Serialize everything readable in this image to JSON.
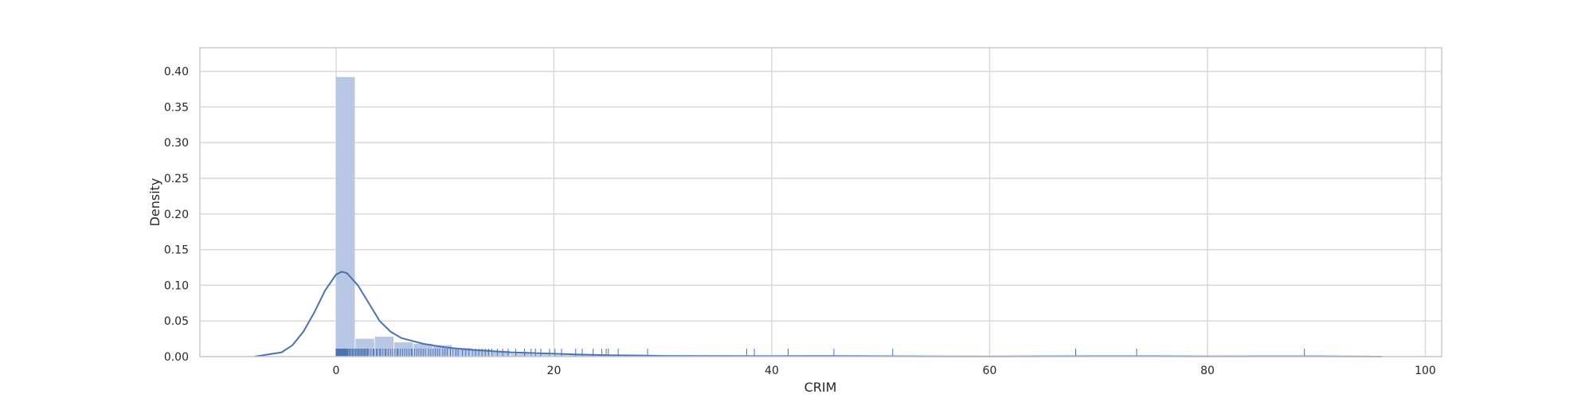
{
  "chart_data": {
    "type": "histogram",
    "xlabel": "CRIM",
    "ylabel": "Density",
    "xlim": [
      -12.5,
      101.5
    ],
    "ylim": [
      0,
      0.433
    ],
    "x_ticks": [
      0,
      20,
      40,
      60,
      80,
      100
    ],
    "y_ticks": [
      0.0,
      0.05,
      0.1,
      0.15,
      0.2,
      0.25,
      0.3,
      0.35,
      0.4
    ],
    "y_tick_labels": [
      "0.00",
      "0.05",
      "0.10",
      "0.15",
      "0.20",
      "0.25",
      "0.30",
      "0.35",
      "0.40"
    ],
    "grid": true,
    "colors": {
      "bar": "#b8c7e3",
      "line": "#4c72b0",
      "rug": "#4c72b0",
      "grid": "#d9d9d9",
      "frame": "#cccccc"
    },
    "histogram": {
      "bin_edges": [
        0.0,
        1.78,
        3.56,
        5.34,
        7.12,
        8.9,
        10.68,
        12.46,
        14.24,
        16.02,
        17.8,
        19.58,
        21.36,
        23.14,
        24.92,
        26.7,
        28.48,
        30.26,
        32.04,
        33.82,
        35.6,
        37.38,
        39.16,
        40.94,
        42.72,
        44.5,
        46.28,
        48.06,
        49.84,
        51.62,
        53.4,
        55.18,
        56.96,
        58.74,
        60.52,
        62.3,
        64.08,
        65.86,
        67.64,
        69.42,
        71.2,
        72.98,
        74.76,
        76.54,
        78.32,
        80.1,
        81.88,
        83.66,
        85.44,
        87.22,
        89.0
      ],
      "densities": [
        0.392,
        0.025,
        0.028,
        0.02,
        0.018,
        0.016,
        0.012,
        0.01,
        0.008,
        0.004,
        0.003,
        0.002,
        0.003,
        0.002,
        0.002,
        0.0,
        0.001,
        0.0,
        0.0,
        0.0,
        0.0,
        0.001,
        0.001,
        0.0,
        0.001,
        0.0,
        0.001,
        0.0,
        0.0,
        0.001,
        0.0,
        0.0,
        0.0,
        0.0,
        0.0,
        0.0,
        0.0,
        0.0,
        0.001,
        0.0,
        0.0,
        0.001,
        0.0,
        0.0,
        0.0,
        0.0,
        0.0,
        0.0,
        0.0,
        0.001
      ]
    },
    "kde": {
      "x": [
        -7.5,
        -5,
        -4,
        -3,
        -2,
        -1,
        0,
        0.5,
        1,
        2,
        3,
        4,
        5,
        6,
        8,
        10,
        12,
        14,
        16,
        18,
        20,
        22,
        25,
        28,
        30,
        35,
        40,
        45,
        50,
        55,
        60,
        65,
        70,
        75,
        80,
        85,
        90,
        96
      ],
      "y": [
        0.0,
        0.006,
        0.016,
        0.035,
        0.062,
        0.093,
        0.115,
        0.119,
        0.117,
        0.1,
        0.075,
        0.05,
        0.035,
        0.026,
        0.018,
        0.013,
        0.01,
        0.008,
        0.006,
        0.005,
        0.004,
        0.003,
        0.002,
        0.0015,
        0.001,
        0.0008,
        0.0007,
        0.0008,
        0.0005,
        0.0003,
        0.0002,
        0.0004,
        0.0006,
        0.0005,
        0.0003,
        0.0004,
        0.0004,
        0.0
      ]
    },
    "rug": [
      0.006,
      0.03,
      0.06,
      0.08,
      0.1,
      0.12,
      0.15,
      0.18,
      0.2,
      0.23,
      0.26,
      0.3,
      0.35,
      0.4,
      0.45,
      0.5,
      0.55,
      0.6,
      0.65,
      0.7,
      0.75,
      0.8,
      0.85,
      0.9,
      0.95,
      1.0,
      1.05,
      1.1,
      1.2,
      1.3,
      1.4,
      1.5,
      1.6,
      1.7,
      1.8,
      1.9,
      2.0,
      2.1,
      2.2,
      2.3,
      2.4,
      2.5,
      2.6,
      2.7,
      2.8,
      2.9,
      3.0,
      3.2,
      3.4,
      3.5,
      3.7,
      3.8,
      4.0,
      4.1,
      4.3,
      4.5,
      4.6,
      4.8,
      5.0,
      5.2,
      5.4,
      5.6,
      5.7,
      5.9,
      6.1,
      6.3,
      6.5,
      6.7,
      6.9,
      7.0,
      7.2,
      7.4,
      7.6,
      7.8,
      8.0,
      8.2,
      8.5,
      8.7,
      8.9,
      9.1,
      9.3,
      9.5,
      9.8,
      10.0,
      10.2,
      10.5,
      10.7,
      11.0,
      11.2,
      11.6,
      11.9,
      12.2,
      12.5,
      12.8,
      13.1,
      13.4,
      13.7,
      14.0,
      14.3,
      14.8,
      15.3,
      15.8,
      16.5,
      17.3,
      17.9,
      18.3,
      18.8,
      19.6,
      20.1,
      20.7,
      22.0,
      22.6,
      23.6,
      24.4,
      24.8,
      25.0,
      25.9,
      28.6,
      37.7,
      38.4,
      41.5,
      45.7,
      51.1,
      67.9,
      73.5,
      88.9
    ]
  }
}
